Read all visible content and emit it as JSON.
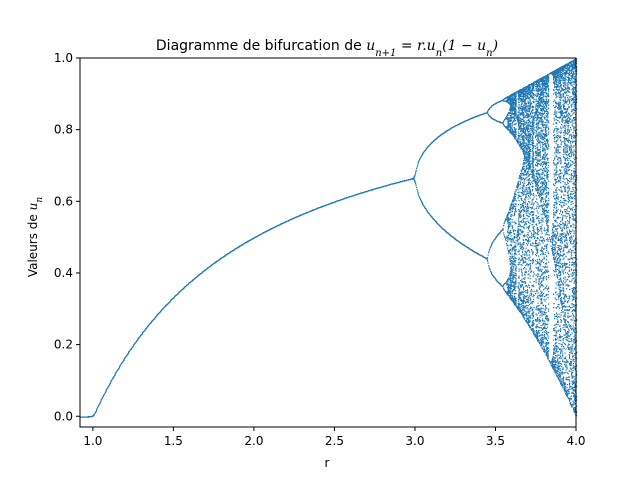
{
  "chart_data": {
    "type": "scatter",
    "title": "Diagramme de bifurcation de u_{n+1} = r.u_n(1 - u_n)",
    "title_parts": {
      "prefix": "Diagramme de bifurcation de ",
      "lhs_var": "u",
      "lhs_sub": "n+1",
      "rhs_text": " = r.",
      "rhs_var": "u",
      "rhs_sub": "n",
      "rhs_open": "(1 − ",
      "rhs_var2": "u",
      "rhs_sub2": "n",
      "rhs_close": ")"
    },
    "xlabel": "r",
    "ylabel_text": "Valeurs de ",
    "ylabel_var": "u",
    "ylabel_sub": "n",
    "xlim": [
      0.92,
      4.0
    ],
    "ylim": [
      -0.03,
      1.0
    ],
    "xticks": [
      1.0,
      1.5,
      2.0,
      2.5,
      3.0,
      3.5,
      4.0
    ],
    "xtick_labels": [
      "1.0",
      "1.5",
      "2.0",
      "2.5",
      "3.0",
      "3.5",
      "4.0"
    ],
    "yticks": [
      0.0,
      0.2,
      0.4,
      0.6,
      0.8,
      1.0
    ],
    "ytick_labels": [
      "0.0",
      "0.2",
      "0.4",
      "0.6",
      "0.8",
      "1.0"
    ],
    "series_color": "#1f77b4",
    "grid": false,
    "map": "logistic",
    "r_range": [
      0.92,
      4.0
    ]
  }
}
